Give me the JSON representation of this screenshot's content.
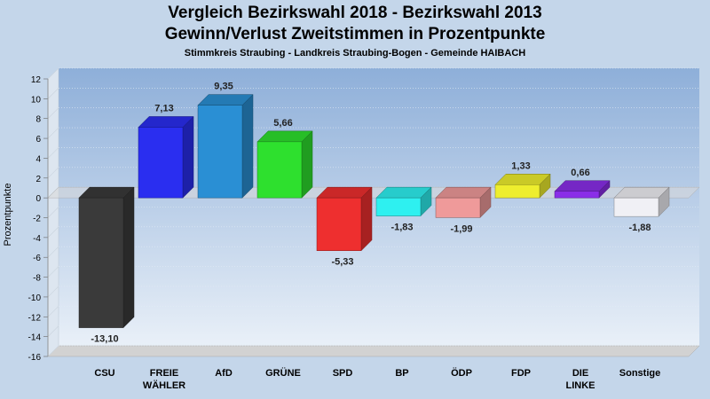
{
  "header": {
    "title_line1": "Vergleich Bezirkswahl 2018 - Bezirkswahl 2013",
    "title_line2": "Gewinn/Verlust Zweitstimmen in Prozentpunkte",
    "subtitle": "Stimmkreis Straubing - Landkreis Straubing-Bogen - Gemeinde HAIBACH"
  },
  "chart_data": {
    "type": "bar",
    "title": "Vergleich Bezirkswahl 2018 - Bezirkswahl 2013 / Gewinn/Verlust Zweitstimmen in Prozentpunkte",
    "subtitle": "Stimmkreis Straubing - Landkreis Straubing-Bogen - Gemeinde HAIBACH",
    "ylabel": "Prozentpunkte",
    "xlabel": "",
    "ylim": [
      -16,
      12
    ],
    "yticks": [
      12,
      10,
      8,
      6,
      4,
      2,
      0,
      -2,
      -4,
      -6,
      -8,
      -10,
      -12,
      -14,
      -16
    ],
    "grid": true,
    "categories": [
      [
        "CSU"
      ],
      [
        "FREIE",
        "WÄHLER"
      ],
      [
        "AfD"
      ],
      [
        "GRÜNE"
      ],
      [
        "SPD"
      ],
      [
        "BP"
      ],
      [
        "ÖDP"
      ],
      [
        "FDP"
      ],
      [
        "DIE",
        "LINKE"
      ],
      [
        "Sonstige"
      ]
    ],
    "values": [
      -13.1,
      7.13,
      9.35,
      5.66,
      -5.33,
      -1.83,
      -1.99,
      1.33,
      0.66,
      -1.88
    ],
    "value_labels": [
      "-13,10",
      "7,13",
      "9,35",
      "5,66",
      "-5,33",
      "-1,83",
      "-1,99",
      "1,33",
      "0,66",
      "-1,88"
    ],
    "colors": [
      "#3a3a3a",
      "#2a2ef0",
      "#2a8fd4",
      "#2ee02e",
      "#ee2f2f",
      "#2ef0f0",
      "#ef9a9a",
      "#eeee2e",
      "#8a2ee8",
      "#f0f0f5"
    ]
  }
}
